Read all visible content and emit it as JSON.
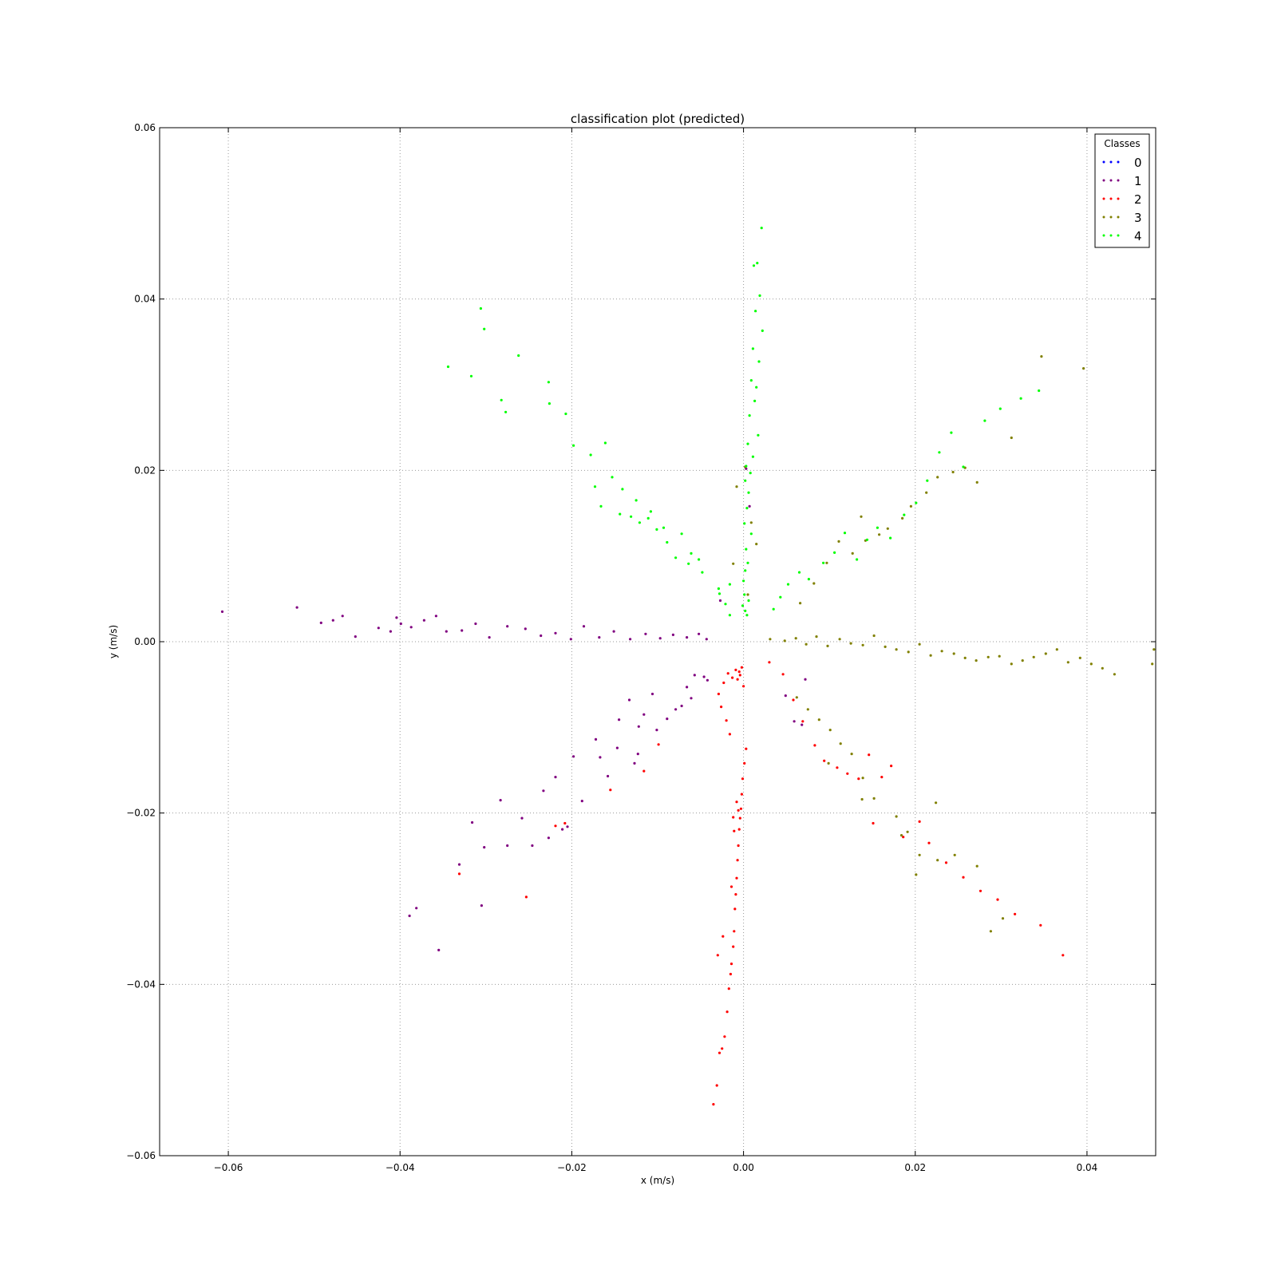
{
  "chart_data": {
    "type": "scatter",
    "title": "classification plot (predicted)",
    "xlabel": "x (m/s)",
    "ylabel": "y (m/s)",
    "xlim": [
      -0.068,
      0.048
    ],
    "ylim": [
      -0.06,
      0.06
    ],
    "xticks": [
      -0.06,
      -0.04,
      -0.02,
      0.0,
      0.02,
      0.04
    ],
    "xtick_labels": [
      "−0.06",
      "−0.04",
      "−0.02",
      "0.00",
      "0.02",
      "0.04"
    ],
    "yticks": [
      0.06,
      0.04,
      0.02,
      0.0,
      -0.02,
      -0.04,
      -0.06
    ],
    "ytick_labels": [
      "0.06",
      "0.04",
      "0.02",
      "0.00",
      "−0.02",
      "−0.04",
      "−0.06"
    ],
    "grid": true,
    "legend": {
      "title": "Classes",
      "placement": "top-right"
    },
    "series": [
      {
        "name": "0",
        "color": "#0000ff",
        "x": [],
        "y": []
      },
      {
        "name": "1",
        "color": "#800080",
        "x": [
          -0.0607,
          -0.052,
          -0.0492,
          -0.0478,
          -0.0467,
          -0.0452,
          -0.0425,
          -0.0411,
          -0.0404,
          -0.0399,
          -0.0387,
          -0.0372,
          -0.0358,
          -0.0346,
          -0.0328,
          -0.0312,
          -0.0296,
          -0.0275,
          -0.0254,
          -0.0236,
          -0.0219,
          -0.0201,
          -0.0186,
          -0.0168,
          -0.0151,
          -0.0132,
          -0.0114,
          -0.0097,
          -0.0082,
          -0.0066,
          -0.0052,
          -0.0043,
          -0.0389,
          -0.0381,
          -0.0355,
          -0.0331,
          -0.0305,
          -0.0302,
          -0.0283,
          -0.0258,
          -0.0246,
          -0.0227,
          -0.0205,
          -0.0211,
          -0.0188,
          -0.0158,
          -0.0147,
          -0.0127,
          -0.0123,
          -0.0101,
          -0.0089,
          -0.0072,
          -0.0061,
          -0.0042,
          -0.0316,
          -0.0275,
          -0.0233,
          -0.0219,
          -0.0198,
          -0.0167,
          -0.0172,
          -0.0145,
          -0.0133,
          -0.0122,
          -0.0116,
          -0.0106,
          -0.0079,
          -0.0066,
          -0.0057,
          -0.0046,
          0.0049,
          0.0059,
          0.0068,
          0.0072,
          0.0007,
          0.0003,
          -0.0027
        ],
        "y": [
          0.0035,
          0.004,
          0.0022,
          0.0025,
          0.003,
          0.0006,
          0.0016,
          0.0012,
          0.0028,
          0.0021,
          0.0017,
          0.0025,
          0.003,
          0.0012,
          0.0013,
          0.0021,
          0.0005,
          0.0018,
          0.0015,
          0.0007,
          0.001,
          0.0003,
          0.0018,
          0.0005,
          0.0012,
          0.0003,
          0.0009,
          0.0004,
          0.0008,
          0.0005,
          0.0009,
          0.0003,
          -0.032,
          -0.0311,
          -0.036,
          -0.026,
          -0.0308,
          -0.024,
          -0.0185,
          -0.0206,
          -0.0238,
          -0.0229,
          -0.0216,
          -0.0219,
          -0.0186,
          -0.0157,
          -0.0124,
          -0.0142,
          -0.0131,
          -0.0103,
          -0.009,
          -0.0075,
          -0.0066,
          -0.0045,
          -0.0211,
          -0.0238,
          -0.0174,
          -0.0158,
          -0.0134,
          -0.0135,
          -0.0114,
          -0.0091,
          -0.0068,
          -0.0099,
          -0.0085,
          -0.0061,
          -0.0079,
          -0.0053,
          -0.0039,
          -0.0041,
          -0.0063,
          -0.0093,
          -0.0097,
          -0.0044,
          0.0158,
          0.0202,
          0.0048
        ]
      },
      {
        "name": "2",
        "color": "#ff0000",
        "x": [
          -0.0035,
          -0.0031,
          -0.0028,
          -0.0025,
          -0.0022,
          -0.0019,
          -0.0017,
          -0.0015,
          -0.0014,
          -0.0012,
          -0.0011,
          -0.001,
          -0.0009,
          -0.0008,
          -0.0007,
          -0.0006,
          -0.0005,
          -0.0004,
          -0.0003,
          -0.0002,
          -0.0001,
          0.0001,
          0.0003,
          -0.0016,
          -0.002,
          -0.0026,
          -0.0029,
          -0.0023,
          -0.0018,
          -0.0013,
          -0.0009,
          -0.0005,
          -0.0007,
          -0.0004,
          -0.0002,
          0.0,
          -0.0012,
          -0.0008,
          -0.0011,
          -0.0006,
          -0.0014,
          -0.0024,
          -0.003,
          0.003,
          0.0046,
          0.0058,
          0.0069,
          0.0083,
          0.0094,
          0.0109,
          0.0121,
          0.0134,
          0.0146,
          0.0161,
          0.0172,
          0.0205,
          0.0216,
          0.0236,
          0.0256,
          0.0276,
          0.0296,
          0.0316,
          0.0346,
          0.0372,
          0.0186,
          0.0151,
          -0.0331,
          -0.0253,
          -0.0155,
          -0.0208,
          -0.0219,
          -0.0116,
          -0.0099
        ],
        "y": [
          -0.054,
          -0.0518,
          -0.048,
          -0.0475,
          -0.0461,
          -0.0432,
          -0.0405,
          -0.0388,
          -0.0376,
          -0.0356,
          -0.0338,
          -0.0312,
          -0.0295,
          -0.0276,
          -0.0255,
          -0.0238,
          -0.0219,
          -0.0206,
          -0.0195,
          -0.0178,
          -0.016,
          -0.0142,
          -0.0125,
          -0.0108,
          -0.0092,
          -0.0076,
          -0.0061,
          -0.0048,
          -0.0037,
          -0.0042,
          -0.0033,
          -0.0035,
          -0.0044,
          -0.0039,
          -0.003,
          -0.0052,
          -0.0205,
          -0.0187,
          -0.0221,
          -0.0197,
          -0.0286,
          -0.0344,
          -0.0366,
          -0.0024,
          -0.0038,
          -0.0068,
          -0.0093,
          -0.0121,
          -0.0139,
          -0.0147,
          -0.0154,
          -0.016,
          -0.0132,
          -0.0158,
          -0.0145,
          -0.021,
          -0.0235,
          -0.0258,
          -0.0275,
          -0.0291,
          -0.0301,
          -0.0318,
          -0.0331,
          -0.0366,
          -0.0228,
          -0.0212,
          -0.0271,
          -0.0298,
          -0.0173,
          -0.0212,
          -0.0215,
          -0.0151,
          -0.012
        ]
      },
      {
        "name": "3",
        "color": "#808000",
        "x": [
          0.0031,
          0.0048,
          0.0061,
          0.0073,
          0.0085,
          0.0098,
          0.0112,
          0.0125,
          0.0139,
          0.0152,
          0.0165,
          0.0178,
          0.0192,
          0.0205,
          0.0218,
          0.0231,
          0.0245,
          0.0258,
          0.0271,
          0.0285,
          0.0298,
          0.0312,
          0.0325,
          0.0338,
          0.0352,
          0.0365,
          0.0378,
          0.0392,
          0.0405,
          0.0418,
          0.0432,
          0.0478,
          0.0476,
          0.0066,
          0.0082,
          0.0097,
          0.0111,
          0.0127,
          0.0142,
          0.0158,
          0.0168,
          0.0185,
          0.0195,
          0.0213,
          0.0226,
          0.0244,
          0.0258,
          0.0272,
          0.0312,
          0.0347,
          0.0396,
          0.0062,
          0.0075,
          0.0088,
          0.0101,
          0.0113,
          0.0126,
          0.0139,
          0.0178,
          0.0191,
          0.0205,
          0.0226,
          0.0246,
          0.0272,
          0.0288,
          0.0302,
          0.0184,
          0.0201,
          0.0224,
          0.0138,
          0.0152,
          0.0099,
          0.0137,
          -0.0008,
          0.0002,
          0.0009,
          0.0015,
          -0.0012,
          0.0005
        ],
        "y": [
          0.0003,
          0.0001,
          0.0004,
          -0.0003,
          0.0006,
          -0.0005,
          0.0003,
          -0.0002,
          -0.0004,
          0.0007,
          -0.0006,
          -0.0009,
          -0.0012,
          -0.0003,
          -0.0016,
          -0.0011,
          -0.0014,
          -0.0019,
          -0.0022,
          -0.0018,
          -0.0017,
          -0.0026,
          -0.0022,
          -0.0018,
          -0.0014,
          -0.0009,
          -0.0024,
          -0.0019,
          -0.0026,
          -0.0031,
          -0.0038,
          -0.0009,
          -0.0026,
          0.0045,
          0.0068,
          0.0092,
          0.0117,
          0.0103,
          0.0118,
          0.0125,
          0.0132,
          0.0144,
          0.0158,
          0.0174,
          0.0192,
          0.0198,
          0.0203,
          0.0186,
          0.0238,
          0.0333,
          0.0319,
          -0.0065,
          -0.0079,
          -0.0091,
          -0.0103,
          -0.0119,
          -0.0131,
          -0.0159,
          -0.0204,
          -0.0222,
          -0.0249,
          -0.0255,
          -0.0249,
          -0.0262,
          -0.0338,
          -0.0323,
          -0.0226,
          -0.0272,
          -0.0188,
          -0.0184,
          -0.0183,
          -0.0142,
          0.0146,
          0.0181,
          0.0204,
          0.0139,
          0.0114,
          0.0091,
          0.0055
        ]
      },
      {
        "name": "4",
        "color": "#00ff00",
        "x": [
          0.0021,
          0.0016,
          0.0012,
          0.0019,
          0.0014,
          0.0022,
          0.0011,
          0.0018,
          0.0009,
          0.0015,
          0.0013,
          0.0007,
          0.0017,
          0.0005,
          0.0011,
          0.0003,
          0.0008,
          0.0002,
          0.0006,
          0.0004,
          0.0001,
          0.0009,
          0.0003,
          0.0005,
          0.0002,
          0.0,
          0.0001,
          -0.0001,
          0.0002,
          0.0004,
          0.0006,
          -0.0306,
          -0.0302,
          -0.0344,
          -0.0317,
          -0.0282,
          -0.0262,
          -0.0277,
          -0.0227,
          -0.0226,
          -0.0207,
          -0.0198,
          -0.0178,
          -0.0161,
          -0.0153,
          -0.0141,
          -0.0125,
          -0.0108,
          -0.0093,
          -0.0072,
          -0.0061,
          -0.0052,
          -0.0029,
          -0.0016,
          -0.0173,
          -0.0166,
          -0.0144,
          -0.0131,
          -0.0121,
          -0.0111,
          -0.0101,
          -0.0089,
          -0.0079,
          -0.0064,
          -0.0048,
          -0.0028,
          -0.0021,
          -0.0016,
          0.0035,
          0.0043,
          0.0052,
          0.0065,
          0.0076,
          0.0093,
          0.0106,
          0.0118,
          0.0132,
          0.0144,
          0.0156,
          0.0171,
          0.0187,
          0.0201,
          0.0214,
          0.0228,
          0.0242,
          0.0256,
          0.0281,
          0.0299,
          0.0323,
          0.0344
        ],
        "y": [
          0.0483,
          0.0442,
          0.0439,
          0.0404,
          0.0386,
          0.0363,
          0.0342,
          0.0327,
          0.0305,
          0.0297,
          0.0281,
          0.0264,
          0.0241,
          0.0231,
          0.0216,
          0.0205,
          0.0197,
          0.0188,
          0.0174,
          0.0156,
          0.0138,
          0.0126,
          0.0108,
          0.0092,
          0.0083,
          0.0071,
          0.0055,
          0.0042,
          0.0036,
          0.0031,
          0.0048,
          0.0389,
          0.0365,
          0.0321,
          0.031,
          0.0282,
          0.0334,
          0.0268,
          0.0303,
          0.0278,
          0.0266,
          0.0229,
          0.0218,
          0.0232,
          0.0192,
          0.0178,
          0.0165,
          0.0152,
          0.0133,
          0.0126,
          0.0103,
          0.0096,
          0.0062,
          0.0067,
          0.0181,
          0.0158,
          0.0149,
          0.0146,
          0.0139,
          0.0144,
          0.0131,
          0.0116,
          0.0098,
          0.0091,
          0.0081,
          0.0056,
          0.0044,
          0.0031,
          0.0038,
          0.0052,
          0.0067,
          0.0081,
          0.0073,
          0.0092,
          0.0104,
          0.0127,
          0.0096,
          0.0119,
          0.0133,
          0.0121,
          0.0148,
          0.0162,
          0.0188,
          0.0221,
          0.0244,
          0.0204,
          0.0258,
          0.0272,
          0.0284,
          0.0293
        ]
      }
    ]
  }
}
